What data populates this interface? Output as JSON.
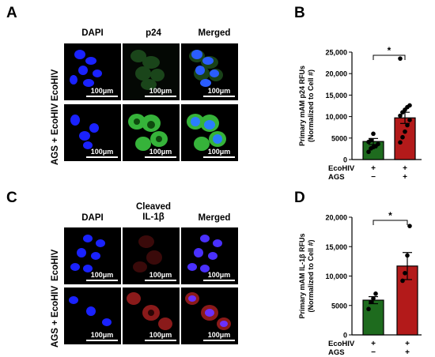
{
  "panels": {
    "A": {
      "label": "A",
      "columns": [
        "DAPI",
        "p24",
        "Merged"
      ],
      "rows": [
        "EcoHIV",
        "AGS + EcoHIV"
      ],
      "scale_bar": "100μm",
      "channel_colors": {
        "dapi": "#1a22ff",
        "p24": "#2fa82f",
        "merged_green": "#36b33a"
      }
    },
    "B": {
      "label": "B",
      "significance": "*",
      "row_labels": [
        "EcoHIV",
        "AGS"
      ],
      "group_signs": [
        [
          "+",
          "−"
        ],
        [
          "+",
          "+"
        ]
      ]
    },
    "C": {
      "label": "C",
      "columns": [
        "DAPI",
        "Cleaved\nIL-1β",
        "Merged"
      ],
      "col_dapi": "DAPI",
      "col_il1b_line1": "Cleaved",
      "col_il1b_line2": "IL-1β",
      "col_merged": "Merged",
      "rows": [
        "EcoHIV",
        "AGS + EcoHIV"
      ],
      "scale_bar": "100μm",
      "channel_colors": {
        "dapi": "#1a22ff",
        "il1b": "#8a1a1a"
      }
    },
    "D": {
      "label": "D",
      "significance": "*",
      "row_labels": [
        "EcoHIV",
        "AGS"
      ],
      "group_signs": [
        [
          "+",
          "−"
        ],
        [
          "+",
          "+"
        ]
      ]
    }
  },
  "chart_data": [
    {
      "type": "bar",
      "panel": "B",
      "ylabel_line1": "Primary mAM p24 RFUs",
      "ylabel_line2": "(Normalized to Cell #)",
      "ylim": [
        0,
        25000
      ],
      "yticks": [
        0,
        5000,
        10000,
        15000,
        20000,
        25000
      ],
      "ytick_labels": [
        "0",
        "5000",
        "10,000",
        "15,000",
        "20,000",
        "25,000"
      ],
      "groups": [
        {
          "mean": 4200,
          "sem": 700,
          "color": "#1e6b1e",
          "points": [
            1800,
            2600,
            2900,
            3100,
            3600,
            4100,
            4500,
            6000
          ]
        },
        {
          "mean": 9700,
          "sem": 1300,
          "color": "#b31a1a",
          "points": [
            4000,
            5200,
            6500,
            8000,
            9200,
            10200,
            11000,
            11600,
            12200,
            12600,
            23500
          ]
        }
      ]
    },
    {
      "type": "bar",
      "panel": "D",
      "ylabel_line1": "Primary mAM IL-1β RFUs",
      "ylabel_line2": "(Normalized to Cell #)",
      "ylim": [
        0,
        20000
      ],
      "yticks": [
        0,
        5000,
        10000,
        15000,
        20000
      ],
      "ytick_labels": [
        "0",
        "5000",
        "10,000",
        "15,000",
        "20,000"
      ],
      "groups": [
        {
          "mean": 5900,
          "sem": 600,
          "color": "#1e6b1e",
          "points": [
            4400,
            5600,
            6200,
            7000
          ]
        },
        {
          "mean": 11700,
          "sem": 2300,
          "color": "#b31a1a",
          "points": [
            9200,
            10500,
            13500,
            18500
          ]
        }
      ]
    }
  ]
}
